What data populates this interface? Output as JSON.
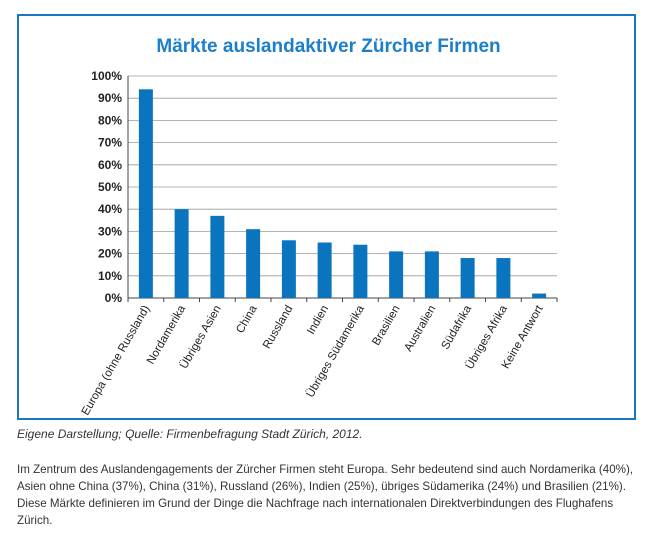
{
  "chart_data": {
    "type": "bar",
    "title": "Märkte auslandaktiver Zürcher Firmen",
    "xlabel": "",
    "ylabel": "",
    "ylim": [
      0,
      100
    ],
    "yticks": [
      "0%",
      "10%",
      "20%",
      "30%",
      "40%",
      "50%",
      "60%",
      "70%",
      "80%",
      "90%",
      "100%"
    ],
    "grid": true,
    "categories": [
      "Europa (ohne Russland)",
      "Nordamerika",
      "Übriges Asien",
      "China",
      "Russland",
      "Indien",
      "Übriges Südamerika",
      "Brasilien",
      "Australien",
      "Südafrika",
      "Übriges Afrika",
      "Keine Antwort"
    ],
    "values": [
      94,
      40,
      37,
      31,
      26,
      25,
      24,
      21,
      21,
      18,
      18,
      2
    ],
    "bar_color": "#0a74bf"
  },
  "caption": "Eigene Darstellung; Quelle: Firmenbefragung Stadt Zürich, 2012.",
  "body_text": "Im Zentrum des Auslandengagements der Zürcher Firmen steht Europa. Sehr bedeutend sind auch Nordamerika (40%), Asien ohne China (37%), China (31%), Russland (26%), Indien (25%), übriges Südamerika (24%) und Brasilien (21%). Diese Märkte definieren im Grund der Dinge die Nachfrage nach internationalen Direktverbindungen des Flughafens Zürich.",
  "colors": {
    "frame": "#1a78c2",
    "title": "#1d7fc9",
    "grid": "#9a9a9a"
  }
}
